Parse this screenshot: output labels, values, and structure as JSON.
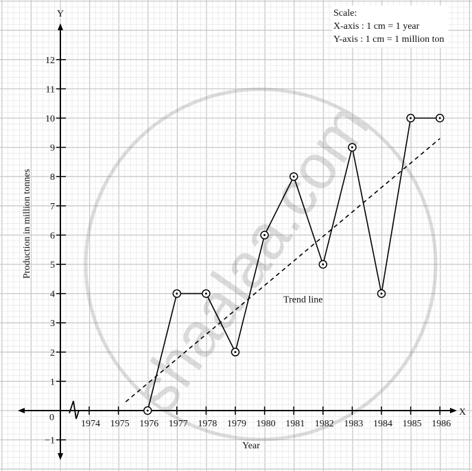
{
  "chart_data": {
    "type": "line",
    "title": "",
    "xlabel": "Year",
    "ylabel": "Production in million tonnes",
    "x_axis_letter": "X",
    "y_axis_letter": "Y",
    "origin_label": "0",
    "x_ticks": [
      "1974",
      "1975",
      "1976",
      "1977",
      "1978",
      "1979",
      "1980",
      "1981",
      "1982",
      "1983",
      "1984",
      "1985",
      "1986"
    ],
    "y_ticks": [
      "−1",
      "1",
      "2",
      "3",
      "4",
      "5",
      "6",
      "7",
      "8",
      "9",
      "10",
      "11",
      "12"
    ],
    "y_tick_values": [
      -1,
      1,
      2,
      3,
      4,
      5,
      6,
      7,
      8,
      9,
      10,
      11,
      12
    ],
    "xlim": [
      1972,
      1987
    ],
    "ylim": [
      -1.5,
      13.5
    ],
    "grid": true,
    "series": [
      {
        "name": "Production",
        "x": [
          1976,
          1977,
          1978,
          1979,
          1980,
          1981,
          1982,
          1983,
          1984,
          1985,
          1986
        ],
        "values": [
          0,
          4,
          4,
          2,
          6,
          8,
          5,
          9,
          4,
          10,
          10
        ],
        "style": "solid",
        "markers": "circled-dot"
      },
      {
        "name": "Trend line",
        "x": [
          1975.25,
          1986
        ],
        "values": [
          0.3,
          9.3
        ],
        "style": "dashed"
      }
    ],
    "annotations": [
      {
        "text": "Trend line",
        "x": 1981.7,
        "y": 3.7
      }
    ],
    "scale": {
      "heading": "Scale:",
      "x_axis": "X-axis : 1 cm = 1 year",
      "y_axis": "Y-axis : 1 cm = 1 million ton"
    },
    "watermark": "shaalaa.com"
  }
}
